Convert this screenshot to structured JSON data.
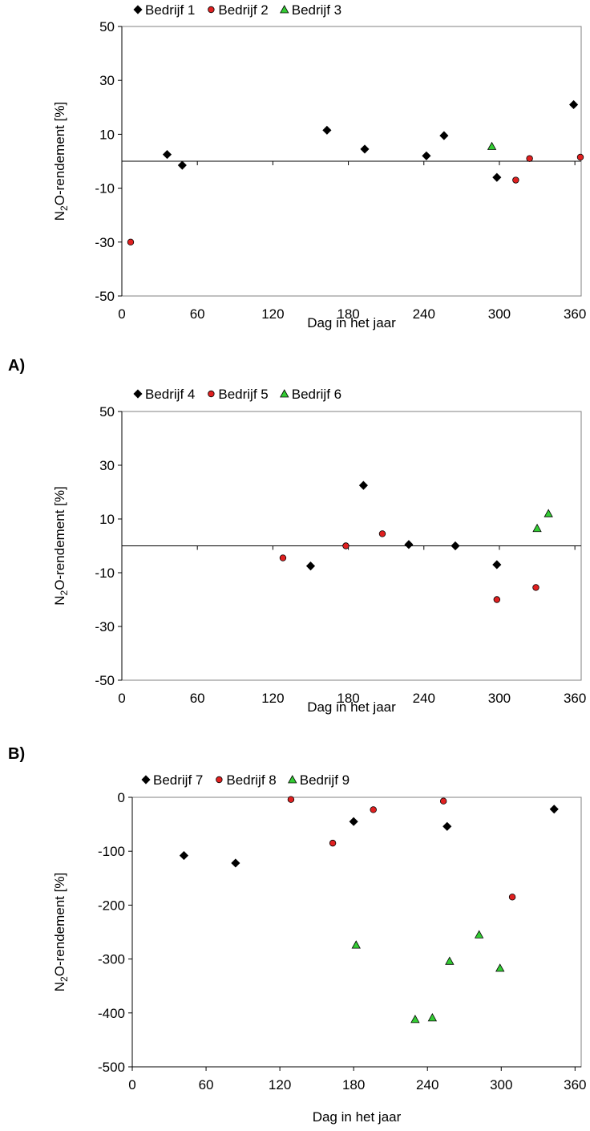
{
  "colors": {
    "black_series": "#000000",
    "red_series": "#e02020",
    "green_series": "#33cc33"
  },
  "chart_data": [
    {
      "type": "scatter",
      "xlabel": "Dag in het jaar",
      "ylabel": "N2O-rendement [%]",
      "xlim": [
        0,
        365
      ],
      "ylim": [
        -50,
        50
      ],
      "xticks": [
        0,
        60,
        120,
        180,
        240,
        300,
        360
      ],
      "yticks": [
        -50,
        -30,
        -10,
        10,
        30,
        50
      ],
      "zero_line": true,
      "grid": false,
      "legend_position": "top",
      "series": [
        {
          "name": "Bedrijf 1",
          "marker": "diamond",
          "color": "#000000",
          "points": [
            [
              36,
              2.5
            ],
            [
              48,
              -1.5
            ],
            [
              163,
              11.5
            ],
            [
              193,
              4.5
            ],
            [
              242,
              2
            ],
            [
              256,
              9.5
            ],
            [
              298,
              -6
            ],
            [
              359,
              21
            ]
          ]
        },
        {
          "name": "Bedrijf 2",
          "marker": "circle",
          "color": "#e02020",
          "points": [
            [
              7,
              -30
            ],
            [
              313,
              -7
            ],
            [
              324,
              1
            ],
            [
              370,
              1.5
            ]
          ]
        },
        {
          "name": "Bedrijf 3",
          "marker": "triangle",
          "color": "#33cc33",
          "points": [
            [
              294,
              5.5
            ]
          ]
        }
      ]
    },
    {
      "type": "scatter",
      "panel_label": "A)",
      "xlabel": "Dag in het jaar",
      "ylabel": "N2O-rendement [%]",
      "xlim": [
        0,
        365
      ],
      "ylim": [
        -50,
        50
      ],
      "xticks": [
        0,
        60,
        120,
        180,
        240,
        300,
        360
      ],
      "yticks": [
        -50,
        -30,
        -10,
        10,
        30,
        50
      ],
      "zero_line": true,
      "grid": false,
      "legend_position": "top",
      "series": [
        {
          "name": "Bedrijf 4",
          "marker": "diamond",
          "color": "#000000",
          "points": [
            [
              150,
              -7.5
            ],
            [
              192,
              22.5
            ],
            [
              228,
              0.5
            ],
            [
              265,
              0
            ],
            [
              298,
              -7
            ]
          ]
        },
        {
          "name": "Bedrijf 5",
          "marker": "circle",
          "color": "#e02020",
          "points": [
            [
              128,
              -4.5
            ],
            [
              178,
              0
            ],
            [
              207,
              4.5
            ],
            [
              298,
              -20
            ],
            [
              329,
              -15.5
            ]
          ]
        },
        {
          "name": "Bedrijf 6",
          "marker": "triangle",
          "color": "#33cc33",
          "points": [
            [
              330,
              6.5
            ],
            [
              339,
              12
            ]
          ]
        }
      ]
    },
    {
      "type": "scatter",
      "panel_label": "B)",
      "xlabel": "Dag in het jaar",
      "ylabel": "N2O-rendement [%]",
      "xlim": [
        0,
        365
      ],
      "ylim": [
        -500,
        0
      ],
      "xticks": [
        0,
        60,
        120,
        180,
        240,
        300,
        360
      ],
      "yticks": [
        -500,
        -400,
        -300,
        -200,
        -100,
        0
      ],
      "zero_line": false,
      "grid": false,
      "legend_position": "top",
      "series": [
        {
          "name": "Bedrijf 7",
          "marker": "diamond",
          "color": "#000000",
          "points": [
            [
              42,
              -108
            ],
            [
              84,
              -122
            ],
            [
              180,
              -45
            ],
            [
              256,
              -54
            ],
            [
              343,
              -22
            ]
          ]
        },
        {
          "name": "Bedrijf 8",
          "marker": "circle",
          "color": "#e02020",
          "points": [
            [
              129,
              -4
            ],
            [
              163,
              -85
            ],
            [
              196,
              -23
            ],
            [
              253,
              -7
            ],
            [
              309,
              -185
            ]
          ]
        },
        {
          "name": "Bedrijf 9",
          "marker": "triangle",
          "color": "#33cc33",
          "points": [
            [
              182,
              -274
            ],
            [
              230,
              -412
            ],
            [
              244,
              -409
            ],
            [
              258,
              -304
            ],
            [
              282,
              -255
            ],
            [
              299,
              -317
            ]
          ]
        }
      ]
    }
  ]
}
